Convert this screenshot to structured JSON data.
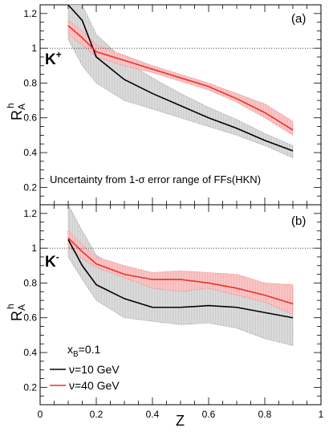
{
  "chart_data": [
    {
      "type": "line",
      "panel_label": "(a)",
      "particle_label": "K",
      "particle_charge": "+",
      "annotation": "Uncertainty from 1-σ error range of FFs(HKN)",
      "xlim": [
        0,
        1
      ],
      "ylim": [
        0.1,
        1.25
      ],
      "xticks": [
        0,
        0.2,
        0.4,
        0.6,
        0.8,
        1
      ],
      "xtick_labels": [
        "",
        "",
        "",
        "",
        "",
        ""
      ],
      "yticks": [
        0.2,
        0.4,
        0.6,
        0.8,
        1.0,
        1.2
      ],
      "ytick_labels": [
        "0.2",
        "0.4",
        "0.6",
        "0.8",
        "1",
        "1.2"
      ],
      "reference_line": 1.0,
      "ylabel": "R",
      "ylabel_sup": "h",
      "ylabel_sub": "A",
      "series": [
        {
          "color": "#000000",
          "band_color": "#9a9a9a",
          "x": [
            0.1,
            0.15,
            0.2,
            0.3,
            0.4,
            0.5,
            0.6,
            0.7,
            0.8,
            0.9
          ],
          "y": [
            1.35,
            1.16,
            0.95,
            0.82,
            0.74,
            0.67,
            0.6,
            0.54,
            0.47,
            0.41
          ],
          "lower": [
            1.05,
            0.9,
            0.8,
            0.7,
            0.65,
            0.6,
            0.55,
            0.5,
            0.44,
            0.37
          ],
          "upper": [
            1.4,
            1.3,
            1.08,
            0.93,
            0.83,
            0.74,
            0.66,
            0.59,
            0.51,
            0.44
          ]
        },
        {
          "color": "#e8322d",
          "band_color": "#f08080",
          "x": [
            0.1,
            0.15,
            0.2,
            0.3,
            0.4,
            0.5,
            0.6,
            0.7,
            0.8,
            0.9
          ],
          "y": [
            1.13,
            1.06,
            0.98,
            0.93,
            0.88,
            0.83,
            0.78,
            0.71,
            0.63,
            0.53
          ],
          "lower": [
            1.08,
            1.02,
            0.95,
            0.9,
            0.86,
            0.81,
            0.76,
            0.69,
            0.6,
            0.5
          ],
          "upper": [
            1.16,
            1.1,
            1.02,
            0.96,
            0.9,
            0.85,
            0.8,
            0.74,
            0.68,
            0.58
          ]
        }
      ]
    },
    {
      "type": "line",
      "panel_label": "(b)",
      "particle_label": "K",
      "particle_charge": "-",
      "xlabel": "Z",
      "xlim": [
        0,
        1
      ],
      "ylim": [
        0.1,
        1.25
      ],
      "xticks": [
        0,
        0.2,
        0.4,
        0.6,
        0.8,
        1
      ],
      "xtick_labels": [
        "0",
        "0.2",
        "0.4",
        "0.6",
        "0.8",
        "1"
      ],
      "yticks": [
        0.2,
        0.4,
        0.6,
        0.8,
        1.0,
        1.2
      ],
      "ytick_labels": [
        "0.2",
        "0.4",
        "0.6",
        "0.8",
        "1",
        "1.2"
      ],
      "reference_line": 1.0,
      "ylabel": "R",
      "ylabel_sup": "h",
      "ylabel_sub": "A",
      "legend": {
        "title": "x",
        "title_sub": "B",
        "title_value": "=0.1",
        "entries": [
          "ν=10 GeV",
          "ν=40 GeV"
        ]
      },
      "series": [
        {
          "color": "#000000",
          "band_color": "#9a9a9a",
          "x": [
            0.1,
            0.15,
            0.2,
            0.3,
            0.4,
            0.5,
            0.6,
            0.7,
            0.8,
            0.9
          ],
          "y": [
            1.05,
            0.9,
            0.79,
            0.71,
            0.66,
            0.66,
            0.67,
            0.66,
            0.63,
            0.6
          ],
          "lower": [
            0.95,
            0.82,
            0.7,
            0.6,
            0.58,
            0.56,
            0.57,
            0.54,
            0.48,
            0.44
          ],
          "upper": [
            1.25,
            1.1,
            0.96,
            0.86,
            0.8,
            0.8,
            0.8,
            0.81,
            0.78,
            0.77
          ]
        },
        {
          "color": "#e8322d",
          "band_color": "#f08080",
          "x": [
            0.1,
            0.15,
            0.2,
            0.3,
            0.4,
            0.5,
            0.6,
            0.7,
            0.8,
            0.9
          ],
          "y": [
            1.06,
            0.98,
            0.91,
            0.85,
            0.82,
            0.82,
            0.8,
            0.77,
            0.73,
            0.68
          ],
          "lower": [
            1.01,
            0.94,
            0.89,
            0.83,
            0.77,
            0.75,
            0.77,
            0.73,
            0.69,
            0.62
          ],
          "upper": [
            1.1,
            1.02,
            0.95,
            0.9,
            0.86,
            0.87,
            0.86,
            0.85,
            0.8,
            0.79
          ]
        }
      ]
    }
  ]
}
